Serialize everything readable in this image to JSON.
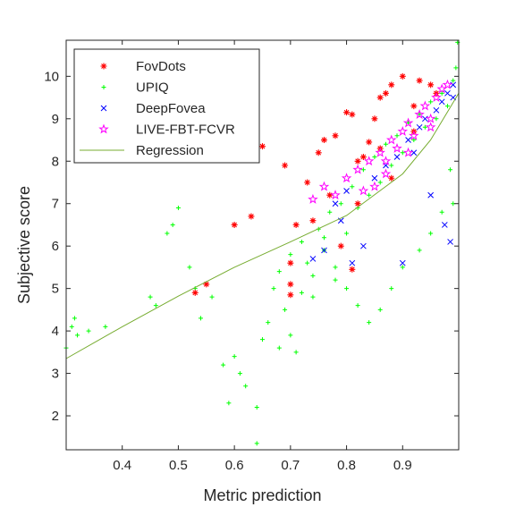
{
  "chart_data": {
    "type": "scatter",
    "xlabel": "Metric prediction",
    "ylabel": "Subjective score",
    "xlim": [
      0.3,
      1.0
    ],
    "ylim": [
      1.2,
      10.85
    ],
    "xticks": [
      "0.4",
      "0.5",
      "0.6",
      "0.7",
      "0.8",
      "0.9"
    ],
    "yticks": [
      "2",
      "3",
      "4",
      "5",
      "6",
      "7",
      "8",
      "9",
      "10"
    ],
    "grid": false,
    "legend_position": "top-left",
    "series": [
      {
        "name": "FovDots",
        "marker": "asterisk",
        "color": "#ff0000",
        "points": [
          [
            0.53,
            4.9
          ],
          [
            0.55,
            5.1
          ],
          [
            0.6,
            6.5
          ],
          [
            0.63,
            6.7
          ],
          [
            0.65,
            8.35
          ],
          [
            0.69,
            7.9
          ],
          [
            0.7,
            5.6
          ],
          [
            0.7,
            5.1
          ],
          [
            0.7,
            4.85
          ],
          [
            0.71,
            6.5
          ],
          [
            0.73,
            7.5
          ],
          [
            0.75,
            8.2
          ],
          [
            0.76,
            8.5
          ],
          [
            0.78,
            8.6
          ],
          [
            0.79,
            6.0
          ],
          [
            0.8,
            9.15
          ],
          [
            0.81,
            9.1
          ],
          [
            0.81,
            5.45
          ],
          [
            0.82,
            7.0
          ],
          [
            0.83,
            8.1
          ],
          [
            0.84,
            8.45
          ],
          [
            0.85,
            9.0
          ],
          [
            0.86,
            9.5
          ],
          [
            0.87,
            9.6
          ],
          [
            0.88,
            9.8
          ],
          [
            0.9,
            10.0
          ],
          [
            0.92,
            9.3
          ],
          [
            0.93,
            9.9
          ],
          [
            0.95,
            9.8
          ],
          [
            0.88,
            7.6
          ],
          [
            0.92,
            8.7
          ],
          [
            0.96,
            9.6
          ],
          [
            0.74,
            6.6
          ],
          [
            0.77,
            7.2
          ],
          [
            0.82,
            8.0
          ],
          [
            0.86,
            8.3
          ]
        ]
      },
      {
        "name": "UPIQ",
        "marker": "plus",
        "color": "#00ff00",
        "points": [
          [
            0.3,
            3.6
          ],
          [
            0.31,
            4.1
          ],
          [
            0.315,
            4.3
          ],
          [
            0.32,
            3.9
          ],
          [
            0.34,
            4.0
          ],
          [
            0.37,
            4.1
          ],
          [
            0.45,
            4.8
          ],
          [
            0.46,
            4.6
          ],
          [
            0.48,
            6.3
          ],
          [
            0.49,
            6.5
          ],
          [
            0.5,
            6.9
          ],
          [
            0.52,
            5.5
          ],
          [
            0.53,
            5.0
          ],
          [
            0.54,
            4.3
          ],
          [
            0.56,
            4.8
          ],
          [
            0.58,
            3.2
          ],
          [
            0.59,
            2.3
          ],
          [
            0.6,
            3.4
          ],
          [
            0.61,
            3.0
          ],
          [
            0.62,
            2.7
          ],
          [
            0.64,
            2.2
          ],
          [
            0.64,
            1.35
          ],
          [
            0.65,
            3.8
          ],
          [
            0.66,
            4.2
          ],
          [
            0.67,
            5.0
          ],
          [
            0.68,
            5.4
          ],
          [
            0.69,
            4.5
          ],
          [
            0.7,
            5.8
          ],
          [
            0.7,
            3.9
          ],
          [
            0.72,
            6.1
          ],
          [
            0.73,
            5.6
          ],
          [
            0.74,
            4.8
          ],
          [
            0.75,
            6.4
          ],
          [
            0.76,
            5.9
          ],
          [
            0.77,
            6.8
          ],
          [
            0.78,
            5.2
          ],
          [
            0.79,
            7.0
          ],
          [
            0.8,
            6.3
          ],
          [
            0.81,
            7.4
          ],
          [
            0.82,
            6.9
          ],
          [
            0.83,
            7.8
          ],
          [
            0.84,
            7.2
          ],
          [
            0.85,
            8.1
          ],
          [
            0.86,
            7.5
          ],
          [
            0.87,
            8.4
          ],
          [
            0.88,
            7.9
          ],
          [
            0.89,
            8.6
          ],
          [
            0.9,
            8.2
          ],
          [
            0.91,
            8.9
          ],
          [
            0.92,
            8.5
          ],
          [
            0.93,
            9.1
          ],
          [
            0.94,
            8.8
          ],
          [
            0.95,
            9.4
          ],
          [
            0.96,
            9.0
          ],
          [
            0.97,
            9.6
          ],
          [
            0.98,
            9.3
          ],
          [
            0.99,
            9.9
          ],
          [
            0.995,
            10.2
          ],
          [
            0.998,
            10.8
          ],
          [
            0.99,
            7.0
          ],
          [
            0.985,
            7.8
          ],
          [
            0.97,
            6.8
          ],
          [
            0.95,
            6.3
          ],
          [
            0.93,
            5.9
          ],
          [
            0.9,
            5.5
          ],
          [
            0.88,
            5.0
          ],
          [
            0.86,
            4.5
          ],
          [
            0.84,
            4.2
          ],
          [
            0.82,
            4.6
          ],
          [
            0.8,
            5.0
          ],
          [
            0.78,
            5.5
          ],
          [
            0.76,
            6.2
          ],
          [
            0.74,
            5.3
          ],
          [
            0.72,
            4.9
          ],
          [
            0.71,
            3.5
          ],
          [
            0.68,
            3.6
          ]
        ]
      },
      {
        "name": "DeepFovea",
        "marker": "x",
        "color": "#0000ff",
        "points": [
          [
            0.74,
            5.7
          ],
          [
            0.76,
            5.9
          ],
          [
            0.78,
            7.0
          ],
          [
            0.79,
            6.6
          ],
          [
            0.8,
            7.3
          ],
          [
            0.81,
            5.6
          ],
          [
            0.83,
            6.0
          ],
          [
            0.85,
            7.6
          ],
          [
            0.87,
            7.9
          ],
          [
            0.89,
            8.1
          ],
          [
            0.9,
            5.6
          ],
          [
            0.91,
            8.5
          ],
          [
            0.92,
            8.2
          ],
          [
            0.93,
            8.8
          ],
          [
            0.94,
            9.0
          ],
          [
            0.95,
            7.2
          ],
          [
            0.96,
            9.2
          ],
          [
            0.97,
            9.4
          ],
          [
            0.975,
            6.5
          ],
          [
            0.98,
            9.6
          ],
          [
            0.985,
            6.1
          ],
          [
            0.99,
            9.8
          ],
          [
            0.99,
            9.5
          ]
        ]
      },
      {
        "name": "LIVE-FBT-FCVR",
        "marker": "pentagram",
        "color": "#ff00ff",
        "points": [
          [
            0.74,
            7.1
          ],
          [
            0.76,
            7.4
          ],
          [
            0.78,
            7.2
          ],
          [
            0.8,
            7.6
          ],
          [
            0.82,
            7.8
          ],
          [
            0.84,
            8.0
          ],
          [
            0.85,
            7.4
          ],
          [
            0.86,
            8.2
          ],
          [
            0.87,
            8.0
          ],
          [
            0.88,
            8.5
          ],
          [
            0.89,
            8.3
          ],
          [
            0.9,
            8.7
          ],
          [
            0.91,
            8.9
          ],
          [
            0.92,
            8.6
          ],
          [
            0.93,
            9.1
          ],
          [
            0.94,
            9.3
          ],
          [
            0.95,
            9.0
          ],
          [
            0.96,
            9.5
          ],
          [
            0.97,
            9.7
          ],
          [
            0.98,
            9.8
          ],
          [
            0.83,
            7.3
          ],
          [
            0.87,
            7.7
          ],
          [
            0.91,
            8.2
          ],
          [
            0.95,
            8.8
          ]
        ]
      },
      {
        "name": "Regression",
        "marker": "line",
        "color": "#77ac30",
        "points": [
          [
            0.3,
            3.35
          ],
          [
            0.4,
            4.1
          ],
          [
            0.5,
            4.82
          ],
          [
            0.6,
            5.5
          ],
          [
            0.7,
            6.1
          ],
          [
            0.8,
            6.72
          ],
          [
            0.9,
            7.7
          ],
          [
            0.95,
            8.5
          ],
          [
            1.0,
            9.6
          ]
        ]
      }
    ]
  }
}
